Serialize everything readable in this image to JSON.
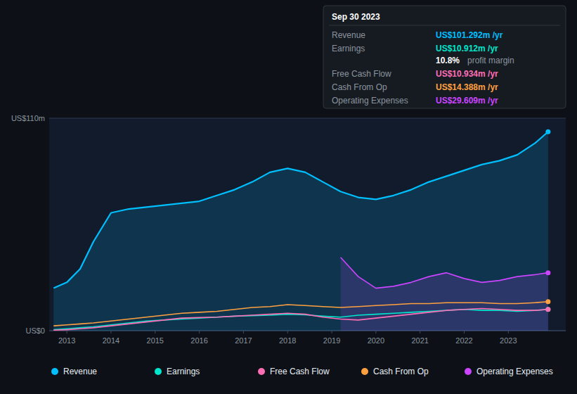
{
  "chart_data": {
    "type": "line",
    "x": [
      2012.7,
      2013.0,
      2013.3,
      2013.6,
      2014.0,
      2014.4,
      2014.8,
      2015.2,
      2015.6,
      2016.0,
      2016.4,
      2016.8,
      2017.2,
      2017.6,
      2018.0,
      2018.4,
      2018.8,
      2019.2,
      2019.6,
      2020.0,
      2020.4,
      2020.8,
      2021.2,
      2021.6,
      2022.0,
      2022.4,
      2022.8,
      2023.2,
      2023.6,
      2023.9
    ],
    "xlim": [
      2012.6,
      2024.3
    ],
    "xticks": [
      2013,
      2014,
      2015,
      2016,
      2017,
      2018,
      2019,
      2020,
      2021,
      2022,
      2023
    ],
    "ylim": [
      0,
      110
    ],
    "yticks": [
      {
        "value": 0,
        "label": "US$0"
      },
      {
        "value": 110,
        "label": "US$110m"
      }
    ],
    "grid": true,
    "legend": "bottom",
    "series": [
      {
        "name": "Revenue",
        "color": "#00bfff",
        "type": "area",
        "values": [
          22,
          25,
          32,
          46,
          61,
          63,
          64,
          65,
          66,
          67,
          70,
          73,
          77,
          82,
          84,
          82,
          77,
          72,
          69,
          68,
          70,
          73,
          77,
          80,
          83,
          86,
          88,
          91,
          97,
          103
        ]
      },
      {
        "name": "Earnings",
        "color": "#00e5cc",
        "type": "line",
        "values": [
          0.5,
          1.0,
          1.5,
          2.0,
          3.0,
          4.0,
          5.0,
          5.5,
          6.0,
          6.5,
          7.0,
          7.5,
          7.8,
          8.0,
          8.5,
          8.2,
          7.5,
          7.0,
          8.0,
          8.5,
          9.0,
          9.5,
          10.0,
          10.5,
          11.0,
          10.5,
          10.5,
          10.0,
          10.5,
          11.0
        ]
      },
      {
        "name": "Free Cash Flow",
        "color": "#ff6eb4",
        "type": "line",
        "values": [
          0.3,
          0.5,
          1.0,
          1.5,
          2.5,
          3.5,
          4.5,
          5.5,
          6.5,
          6.8,
          7.0,
          7.5,
          8.0,
          8.5,
          9.0,
          8.5,
          7.0,
          6.0,
          5.5,
          6.5,
          7.5,
          8.5,
          9.5,
          10.5,
          11.0,
          11.5,
          11.0,
          10.5,
          10.5,
          11.0
        ]
      },
      {
        "name": "Cash From Op",
        "color": "#ffa040",
        "type": "line",
        "values": [
          2.5,
          3.0,
          3.5,
          4.0,
          5.0,
          6.0,
          7.0,
          8.0,
          9.0,
          9.5,
          10.0,
          11.0,
          12.0,
          12.5,
          13.5,
          13.0,
          12.5,
          12.0,
          12.5,
          13.0,
          13.5,
          14.0,
          14.0,
          14.5,
          14.5,
          14.5,
          14.0,
          14.0,
          14.5,
          15.0
        ]
      },
      {
        "name": "Operating Expenses",
        "color": "#cc44ff",
        "type": "area",
        "values": [
          null,
          null,
          null,
          null,
          null,
          null,
          null,
          null,
          null,
          null,
          null,
          null,
          null,
          null,
          null,
          null,
          null,
          38,
          28,
          22,
          23,
          25,
          28,
          30,
          27,
          25,
          26,
          28,
          29,
          30
        ]
      }
    ],
    "annotations": {
      "title": "Sep 30 2023",
      "rows": [
        {
          "label": "Revenue",
          "value": "US$101.292m /yr"
        },
        {
          "label": "Earnings",
          "value": "US$10.912m /yr",
          "sub_value": "10.8%",
          "sub_label": "profit margin"
        },
        {
          "label": "Free Cash Flow",
          "value": "US$10.934m /yr"
        },
        {
          "label": "Cash From Op",
          "value": "US$14.388m /yr"
        },
        {
          "label": "Operating Expenses",
          "value": "US$29.609m /yr"
        }
      ]
    }
  }
}
